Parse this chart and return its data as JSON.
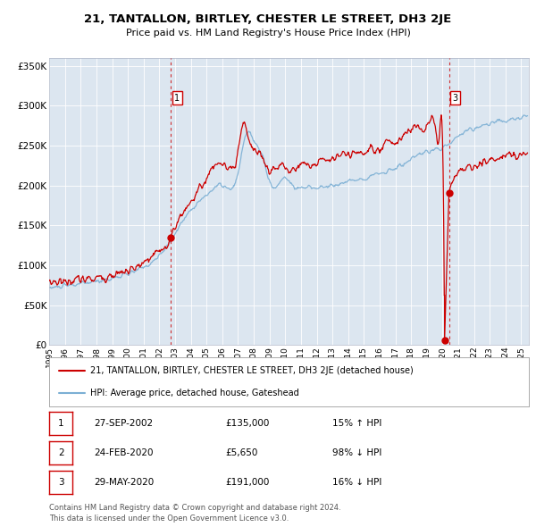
{
  "title": "21, TANTALLON, BIRTLEY, CHESTER LE STREET, DH3 2JE",
  "subtitle": "Price paid vs. HM Land Registry's House Price Index (HPI)",
  "plot_bg_color": "#dce6f0",
  "red_line_color": "#cc0000",
  "blue_line_color": "#7bafd4",
  "transaction1": {
    "date_num": 2002.74,
    "price": 135000,
    "label": "1"
  },
  "transaction2": {
    "date_num": 2020.13,
    "price": 5650,
    "label": "2"
  },
  "transaction3": {
    "date_num": 2020.41,
    "price": 191000,
    "label": "3"
  },
  "ylim": [
    0,
    360000
  ],
  "xlim": [
    1995.0,
    2025.5
  ],
  "yticks": [
    0,
    50000,
    100000,
    150000,
    200000,
    250000,
    300000,
    350000
  ],
  "xtick_years": [
    1995,
    1996,
    1997,
    1998,
    1999,
    2000,
    2001,
    2002,
    2003,
    2004,
    2005,
    2006,
    2007,
    2008,
    2009,
    2010,
    2011,
    2012,
    2013,
    2014,
    2015,
    2016,
    2017,
    2018,
    2019,
    2020,
    2021,
    2022,
    2023,
    2024,
    2025
  ],
  "legend_entries": [
    "21, TANTALLON, BIRTLEY, CHESTER LE STREET, DH3 2JE (detached house)",
    "HPI: Average price, detached house, Gateshead"
  ],
  "table_data": [
    [
      "1",
      "27-SEP-2002",
      "£135,000",
      "15% ↑ HPI"
    ],
    [
      "2",
      "24-FEB-2020",
      "£5,650",
      "98% ↓ HPI"
    ],
    [
      "3",
      "29-MAY-2020",
      "£191,000",
      "16% ↓ HPI"
    ]
  ],
  "footer": "Contains HM Land Registry data © Crown copyright and database right 2024.\nThis data is licensed under the Open Government Licence v3.0."
}
